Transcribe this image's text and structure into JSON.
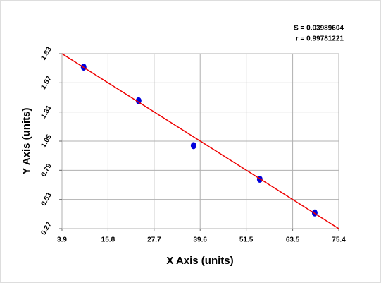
{
  "chart_data": {
    "type": "scatter",
    "annotations": [
      "S = 0.03989604",
      "r = 0.99781221"
    ],
    "x_label": "X Axis (units)",
    "y_label": "Y Axis (units)",
    "series": [
      {
        "color": "#0000dd",
        "x": [
          9.5,
          23.7,
          37.9,
          55.0,
          69.2
        ],
        "values": [
          1.71,
          1.41,
          1.01,
          0.71,
          0.41
        ]
      }
    ],
    "fit": {
      "color": "#ee0000",
      "x": [
        3.9,
        75.4
      ],
      "values": [
        1.83,
        0.27
      ]
    },
    "xlim": [
      3.9,
      75.4
    ],
    "xticks": [
      3.9,
      15.8,
      27.7,
      39.6,
      51.5,
      63.5,
      75.4
    ],
    "ylim": [
      0.27,
      1.83
    ],
    "yticks": [
      0.27,
      0.53,
      0.79,
      1.05,
      1.31,
      1.57,
      1.83
    ],
    "grid": true
  }
}
